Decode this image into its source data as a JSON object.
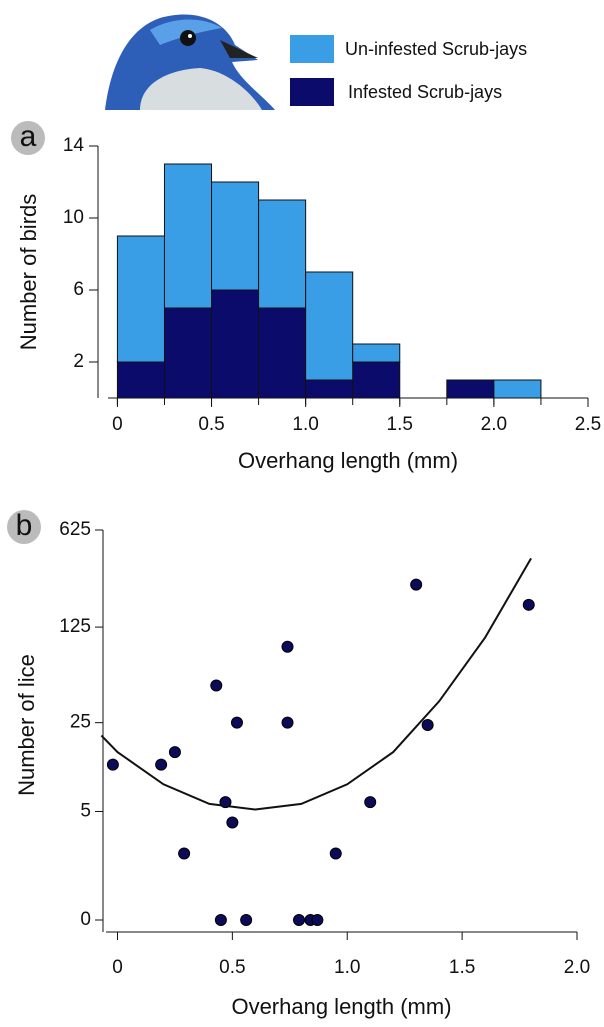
{
  "chart_data": [
    {
      "type": "histogram",
      "panel_label": "a",
      "x_label": "Overhang length (mm)",
      "y_label": "Number of birds",
      "bins": [
        0,
        0.25,
        0.5,
        0.75,
        1.0,
        1.25,
        1.5,
        1.75,
        2.0,
        2.25
      ],
      "stacked": true,
      "series": [
        {
          "name": "Infested Scrub-jays",
          "color": "#0b0b6b",
          "values": [
            2,
            5,
            6,
            5,
            1,
            2,
            0,
            1,
            0
          ]
        },
        {
          "name": "Un-infested Scrub-jays",
          "color": "#3a9ee6",
          "values": [
            7,
            8,
            6,
            6,
            6,
            1,
            0,
            0,
            1
          ]
        }
      ],
      "xlim": [
        -0.05,
        2.5
      ],
      "xticks": [
        0,
        0.5,
        {
          "value": 1.0,
          "label": "1.0"
        },
        1.5,
        {
          "value": 2.0,
          "label": "2.0"
        },
        2.5
      ],
      "ylim": [
        0,
        14
      ],
      "yticks": [
        2,
        6,
        10,
        14
      ]
    },
    {
      "type": "scatter",
      "panel_label": "b",
      "x_label": "Overhang length (mm)",
      "y_label": "Number of lice",
      "yscale": "log1p",
      "x": [
        -0.02,
        0.19,
        0.25,
        0.29,
        0.43,
        0.45,
        0.47,
        0.5,
        0.52,
        0.56,
        0.74,
        0.74,
        0.79,
        0.84,
        0.87,
        0.95,
        1.1,
        1.3,
        1.35,
        1.79
      ],
      "values": [
        12,
        12,
        15,
        2,
        47,
        0,
        6,
        4,
        25,
        0,
        90,
        25,
        0,
        0,
        0,
        2,
        6,
        253,
        24,
        181
      ],
      "color": "#0b0b5a",
      "fit": {
        "x": [
          -0.07,
          0,
          0.2,
          0.4,
          0.6,
          0.8,
          1.0,
          1.2,
          1.4,
          1.6,
          1.8
        ],
        "values": [
          20,
          15,
          8.4,
          5.8,
          5.2,
          5.8,
          8.4,
          15,
          36,
          105,
          391
        ]
      },
      "xlim": [
        -0.05,
        2.0
      ],
      "xticks": [
        0,
        0.5,
        {
          "value": 1.0,
          "label": "1.0"
        },
        1.5,
        {
          "value": 2.0,
          "label": "2.0"
        }
      ],
      "ylim": [
        0,
        625
      ],
      "yticks": [
        0,
        5,
        25,
        125,
        625
      ]
    }
  ]
}
